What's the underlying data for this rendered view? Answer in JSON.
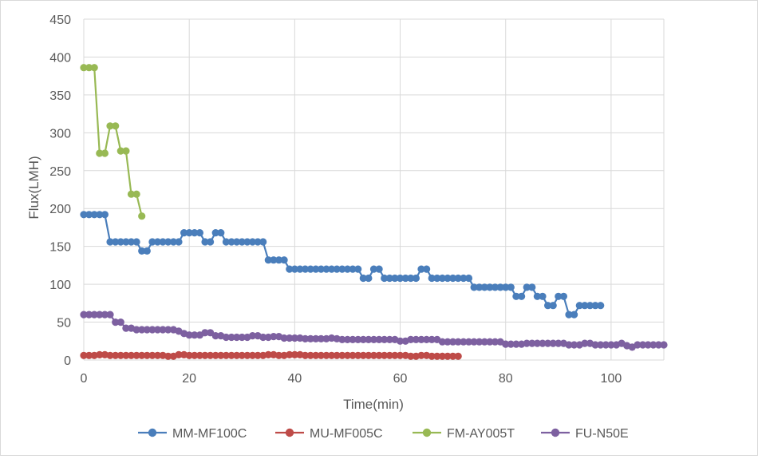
{
  "chart_data": {
    "type": "line",
    "title": "",
    "xlabel": "Time(min)",
    "ylabel": "Flux(LMH)",
    "xlim": [
      0,
      110
    ],
    "ylim": [
      0,
      450
    ],
    "x_ticks": [
      0,
      20,
      40,
      60,
      80,
      100
    ],
    "y_ticks": [
      0,
      50,
      100,
      150,
      200,
      250,
      300,
      350,
      400,
      450
    ],
    "grid": true,
    "legend": "bottom",
    "series": [
      {
        "name": "MM-MF100C",
        "color": "#4a7ebb",
        "x": [
          0,
          1,
          2,
          3,
          4,
          5,
          6,
          7,
          8,
          9,
          10,
          11,
          12,
          13,
          14,
          15,
          16,
          17,
          18,
          19,
          20,
          21,
          22,
          23,
          24,
          25,
          26,
          27,
          28,
          29,
          30,
          31,
          32,
          33,
          34,
          35,
          36,
          37,
          38,
          39,
          40,
          41,
          42,
          43,
          44,
          45,
          46,
          47,
          48,
          49,
          50,
          51,
          52,
          53,
          54,
          55,
          56,
          57,
          58,
          59,
          60,
          61,
          62,
          63,
          64,
          65,
          66,
          67,
          68,
          69,
          70,
          71,
          72,
          73,
          74,
          75,
          76,
          77,
          78,
          79,
          80,
          81,
          82,
          83,
          84,
          85,
          86,
          87,
          88,
          89,
          90,
          91,
          92,
          93,
          94,
          95,
          96,
          97,
          98
        ],
        "y": [
          192,
          192,
          192,
          192,
          192,
          156,
          156,
          156,
          156,
          156,
          156,
          144,
          144,
          156,
          156,
          156,
          156,
          156,
          156,
          168,
          168,
          168,
          168,
          156,
          156,
          168,
          168,
          156,
          156,
          156,
          156,
          156,
          156,
          156,
          156,
          132,
          132,
          132,
          132,
          120,
          120,
          120,
          120,
          120,
          120,
          120,
          120,
          120,
          120,
          120,
          120,
          120,
          120,
          108,
          108,
          120,
          120,
          108,
          108,
          108,
          108,
          108,
          108,
          108,
          120,
          120,
          108,
          108,
          108,
          108,
          108,
          108,
          108,
          108,
          96,
          96,
          96,
          96,
          96,
          96,
          96,
          96,
          84,
          84,
          96,
          96,
          84,
          84,
          72,
          72,
          84,
          84,
          60,
          60,
          72,
          72,
          72,
          72,
          72
        ]
      },
      {
        "name": "MU-MF005C",
        "color": "#be4b48",
        "x": [
          0,
          1,
          2,
          3,
          4,
          5,
          6,
          7,
          8,
          9,
          10,
          11,
          12,
          13,
          14,
          15,
          16,
          17,
          18,
          19,
          20,
          21,
          22,
          23,
          24,
          25,
          26,
          27,
          28,
          29,
          30,
          31,
          32,
          33,
          34,
          35,
          36,
          37,
          38,
          39,
          40,
          41,
          42,
          43,
          44,
          45,
          46,
          47,
          48,
          49,
          50,
          51,
          52,
          53,
          54,
          55,
          56,
          57,
          58,
          59,
          60,
          61,
          62,
          63,
          64,
          65,
          66,
          67,
          68,
          69,
          70,
          71
        ],
        "y": [
          6,
          6,
          6,
          7,
          7,
          6,
          6,
          6,
          6,
          6,
          6,
          6,
          6,
          6,
          6,
          6,
          5,
          5,
          7,
          7,
          6,
          6,
          6,
          6,
          6,
          6,
          6,
          6,
          6,
          6,
          6,
          6,
          6,
          6,
          6,
          7,
          7,
          6,
          6,
          7,
          7,
          7,
          6,
          6,
          6,
          6,
          6,
          6,
          6,
          6,
          6,
          6,
          6,
          6,
          6,
          6,
          6,
          6,
          6,
          6,
          6,
          6,
          5,
          5,
          6,
          6,
          5,
          5,
          5,
          5,
          5,
          5
        ]
      },
      {
        "name": "FM-AY005T",
        "color": "#98b954",
        "x": [
          0,
          1,
          2,
          3,
          4,
          5,
          6,
          7,
          8,
          9,
          10,
          11
        ],
        "y": [
          386,
          386,
          386,
          273,
          273,
          309,
          309,
          276,
          276,
          219,
          219,
          190
        ]
      },
      {
        "name": "FU-N50E",
        "color": "#7d60a0",
        "x": [
          0,
          1,
          2,
          3,
          4,
          5,
          6,
          7,
          8,
          9,
          10,
          11,
          12,
          13,
          14,
          15,
          16,
          17,
          18,
          19,
          20,
          21,
          22,
          23,
          24,
          25,
          26,
          27,
          28,
          29,
          30,
          31,
          32,
          33,
          34,
          35,
          36,
          37,
          38,
          39,
          40,
          41,
          42,
          43,
          44,
          45,
          46,
          47,
          48,
          49,
          50,
          51,
          52,
          53,
          54,
          55,
          56,
          57,
          58,
          59,
          60,
          61,
          62,
          63,
          64,
          65,
          66,
          67,
          68,
          69,
          70,
          71,
          72,
          73,
          74,
          75,
          76,
          77,
          78,
          79,
          80,
          81,
          82,
          83,
          84,
          85,
          86,
          87,
          88,
          89,
          90,
          91,
          92,
          93,
          94,
          95,
          96,
          97,
          98,
          99,
          100,
          101,
          102,
          103,
          104,
          105,
          106,
          107,
          108,
          109,
          110
        ],
        "y": [
          60,
          60,
          60,
          60,
          60,
          60,
          50,
          50,
          42,
          42,
          40,
          40,
          40,
          40,
          40,
          40,
          40,
          40,
          38,
          35,
          33,
          33,
          33,
          36,
          36,
          32,
          32,
          30,
          30,
          30,
          30,
          30,
          32,
          32,
          30,
          30,
          31,
          31,
          29,
          29,
          29,
          29,
          28,
          28,
          28,
          28,
          28,
          29,
          28,
          27,
          27,
          27,
          27,
          27,
          27,
          27,
          27,
          27,
          27,
          27,
          25,
          25,
          27,
          27,
          27,
          27,
          27,
          27,
          24,
          24,
          24,
          24,
          24,
          24,
          24,
          24,
          24,
          24,
          24,
          24,
          21,
          21,
          21,
          21,
          22,
          22,
          22,
          22,
          22,
          22,
          22,
          22,
          20,
          20,
          20,
          22,
          22,
          20,
          20,
          20,
          20,
          20,
          22,
          19,
          17,
          20,
          20,
          20,
          20,
          20,
          20
        ]
      }
    ]
  }
}
